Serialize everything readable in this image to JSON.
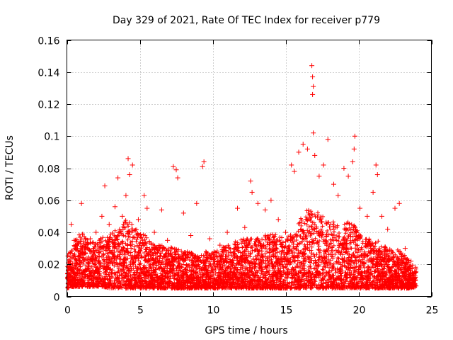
{
  "chart_data": {
    "type": "scatter",
    "title": "Day 329 of 2021, Rate Of TEC Index for receiver p779",
    "xlabel": "GPS time / hours",
    "ylabel": "ROTI / TECUs",
    "xlim": [
      0,
      25
    ],
    "ylim": [
      0,
      0.16
    ],
    "xticks": [
      0,
      5,
      10,
      15,
      20,
      25
    ],
    "xtick_labels": [
      "0",
      "5",
      "10",
      "15",
      "20",
      "25"
    ],
    "yticks": [
      0,
      0.02,
      0.04,
      0.06,
      0.08,
      0.1,
      0.12,
      0.14,
      0.16
    ],
    "ytick_labels": [
      "0",
      "0.02",
      "0.04",
      "0.06",
      "0.08",
      "0.1",
      "0.12",
      "0.14",
      "0.16"
    ],
    "grid": true,
    "marker": "+",
    "color": "#ff0000",
    "series": [
      {
        "name": "ROTI",
        "points": [
          [
            0.05,
            0.012
          ],
          [
            0.15,
            0.022
          ],
          [
            0.3,
            0.045
          ],
          [
            0.5,
            0.035
          ],
          [
            0.8,
            0.025
          ],
          [
            1.0,
            0.058
          ],
          [
            1.2,
            0.03
          ],
          [
            1.6,
            0.036
          ],
          [
            2.0,
            0.04
          ],
          [
            2.4,
            0.05
          ],
          [
            2.6,
            0.069
          ],
          [
            2.9,
            0.045
          ],
          [
            3.3,
            0.056
          ],
          [
            3.5,
            0.074
          ],
          [
            3.8,
            0.05
          ],
          [
            4.05,
            0.063
          ],
          [
            4.2,
            0.086
          ],
          [
            4.3,
            0.076
          ],
          [
            4.5,
            0.082
          ],
          [
            4.9,
            0.048
          ],
          [
            5.3,
            0.063
          ],
          [
            5.5,
            0.055
          ],
          [
            6.0,
            0.04
          ],
          [
            6.5,
            0.054
          ],
          [
            6.9,
            0.035
          ],
          [
            7.3,
            0.081
          ],
          [
            7.5,
            0.079
          ],
          [
            7.6,
            0.074
          ],
          [
            8.0,
            0.052
          ],
          [
            8.5,
            0.038
          ],
          [
            8.9,
            0.058
          ],
          [
            9.3,
            0.081
          ],
          [
            9.4,
            0.084
          ],
          [
            9.8,
            0.036
          ],
          [
            10.5,
            0.032
          ],
          [
            11.0,
            0.04
          ],
          [
            11.7,
            0.055
          ],
          [
            12.2,
            0.043
          ],
          [
            12.6,
            0.072
          ],
          [
            12.7,
            0.065
          ],
          [
            13.1,
            0.058
          ],
          [
            13.6,
            0.054
          ],
          [
            14.0,
            0.06
          ],
          [
            14.5,
            0.048
          ],
          [
            15.0,
            0.04
          ],
          [
            15.4,
            0.082
          ],
          [
            15.6,
            0.078
          ],
          [
            15.9,
            0.09
          ],
          [
            16.2,
            0.095
          ],
          [
            16.5,
            0.092
          ],
          [
            16.8,
            0.144
          ],
          [
            16.85,
            0.137
          ],
          [
            16.9,
            0.131
          ],
          [
            16.85,
            0.126
          ],
          [
            16.9,
            0.102
          ],
          [
            17.0,
            0.088
          ],
          [
            17.3,
            0.075
          ],
          [
            17.6,
            0.082
          ],
          [
            17.9,
            0.098
          ],
          [
            18.3,
            0.07
          ],
          [
            18.6,
            0.063
          ],
          [
            19.0,
            0.08
          ],
          [
            19.3,
            0.075
          ],
          [
            19.6,
            0.084
          ],
          [
            19.7,
            0.092
          ],
          [
            19.75,
            0.1
          ],
          [
            20.1,
            0.055
          ],
          [
            20.6,
            0.05
          ],
          [
            21.0,
            0.065
          ],
          [
            21.2,
            0.082
          ],
          [
            21.3,
            0.076
          ],
          [
            21.6,
            0.05
          ],
          [
            22.0,
            0.042
          ],
          [
            22.5,
            0.055
          ],
          [
            22.8,
            0.058
          ],
          [
            23.2,
            0.03
          ],
          [
            23.6,
            0.022
          ],
          [
            23.9,
            0.012
          ]
        ]
      }
    ],
    "dense_band": {
      "description_values": "bulk of samples lie between the given lower and upper ROTI bounds per hour",
      "hours": [
        0,
        0.5,
        1,
        1.5,
        2,
        2.5,
        3,
        3.5,
        4,
        4.5,
        5,
        5.5,
        6,
        6.5,
        7,
        7.5,
        8,
        8.5,
        9,
        9.5,
        10,
        10.5,
        11,
        11.5,
        12,
        12.5,
        13,
        13.5,
        14,
        14.5,
        15,
        15.5,
        16,
        16.5,
        17,
        17.5,
        18,
        18.5,
        19,
        19.5,
        20,
        20.5,
        21,
        21.5,
        22,
        22.5,
        23,
        23.5,
        24
      ],
      "upper": [
        0.025,
        0.035,
        0.04,
        0.035,
        0.035,
        0.038,
        0.04,
        0.042,
        0.048,
        0.045,
        0.04,
        0.038,
        0.032,
        0.032,
        0.03,
        0.032,
        0.028,
        0.028,
        0.026,
        0.028,
        0.028,
        0.03,
        0.032,
        0.034,
        0.036,
        0.036,
        0.036,
        0.038,
        0.04,
        0.038,
        0.036,
        0.04,
        0.048,
        0.055,
        0.055,
        0.05,
        0.048,
        0.046,
        0.045,
        0.048,
        0.04,
        0.036,
        0.036,
        0.034,
        0.03,
        0.03,
        0.028,
        0.022,
        0.018
      ],
      "lower": [
        0.005,
        0.006,
        0.006,
        0.006,
        0.006,
        0.006,
        0.005,
        0.005,
        0.005,
        0.005,
        0.005,
        0.005,
        0.005,
        0.005,
        0.005,
        0.005,
        0.005,
        0.005,
        0.005,
        0.005,
        0.005,
        0.005,
        0.005,
        0.005,
        0.005,
        0.005,
        0.005,
        0.005,
        0.005,
        0.005,
        0.005,
        0.005,
        0.005,
        0.005,
        0.005,
        0.005,
        0.005,
        0.005,
        0.005,
        0.005,
        0.005,
        0.005,
        0.005,
        0.005,
        0.005,
        0.005,
        0.005,
        0.005,
        0.006
      ]
    }
  }
}
